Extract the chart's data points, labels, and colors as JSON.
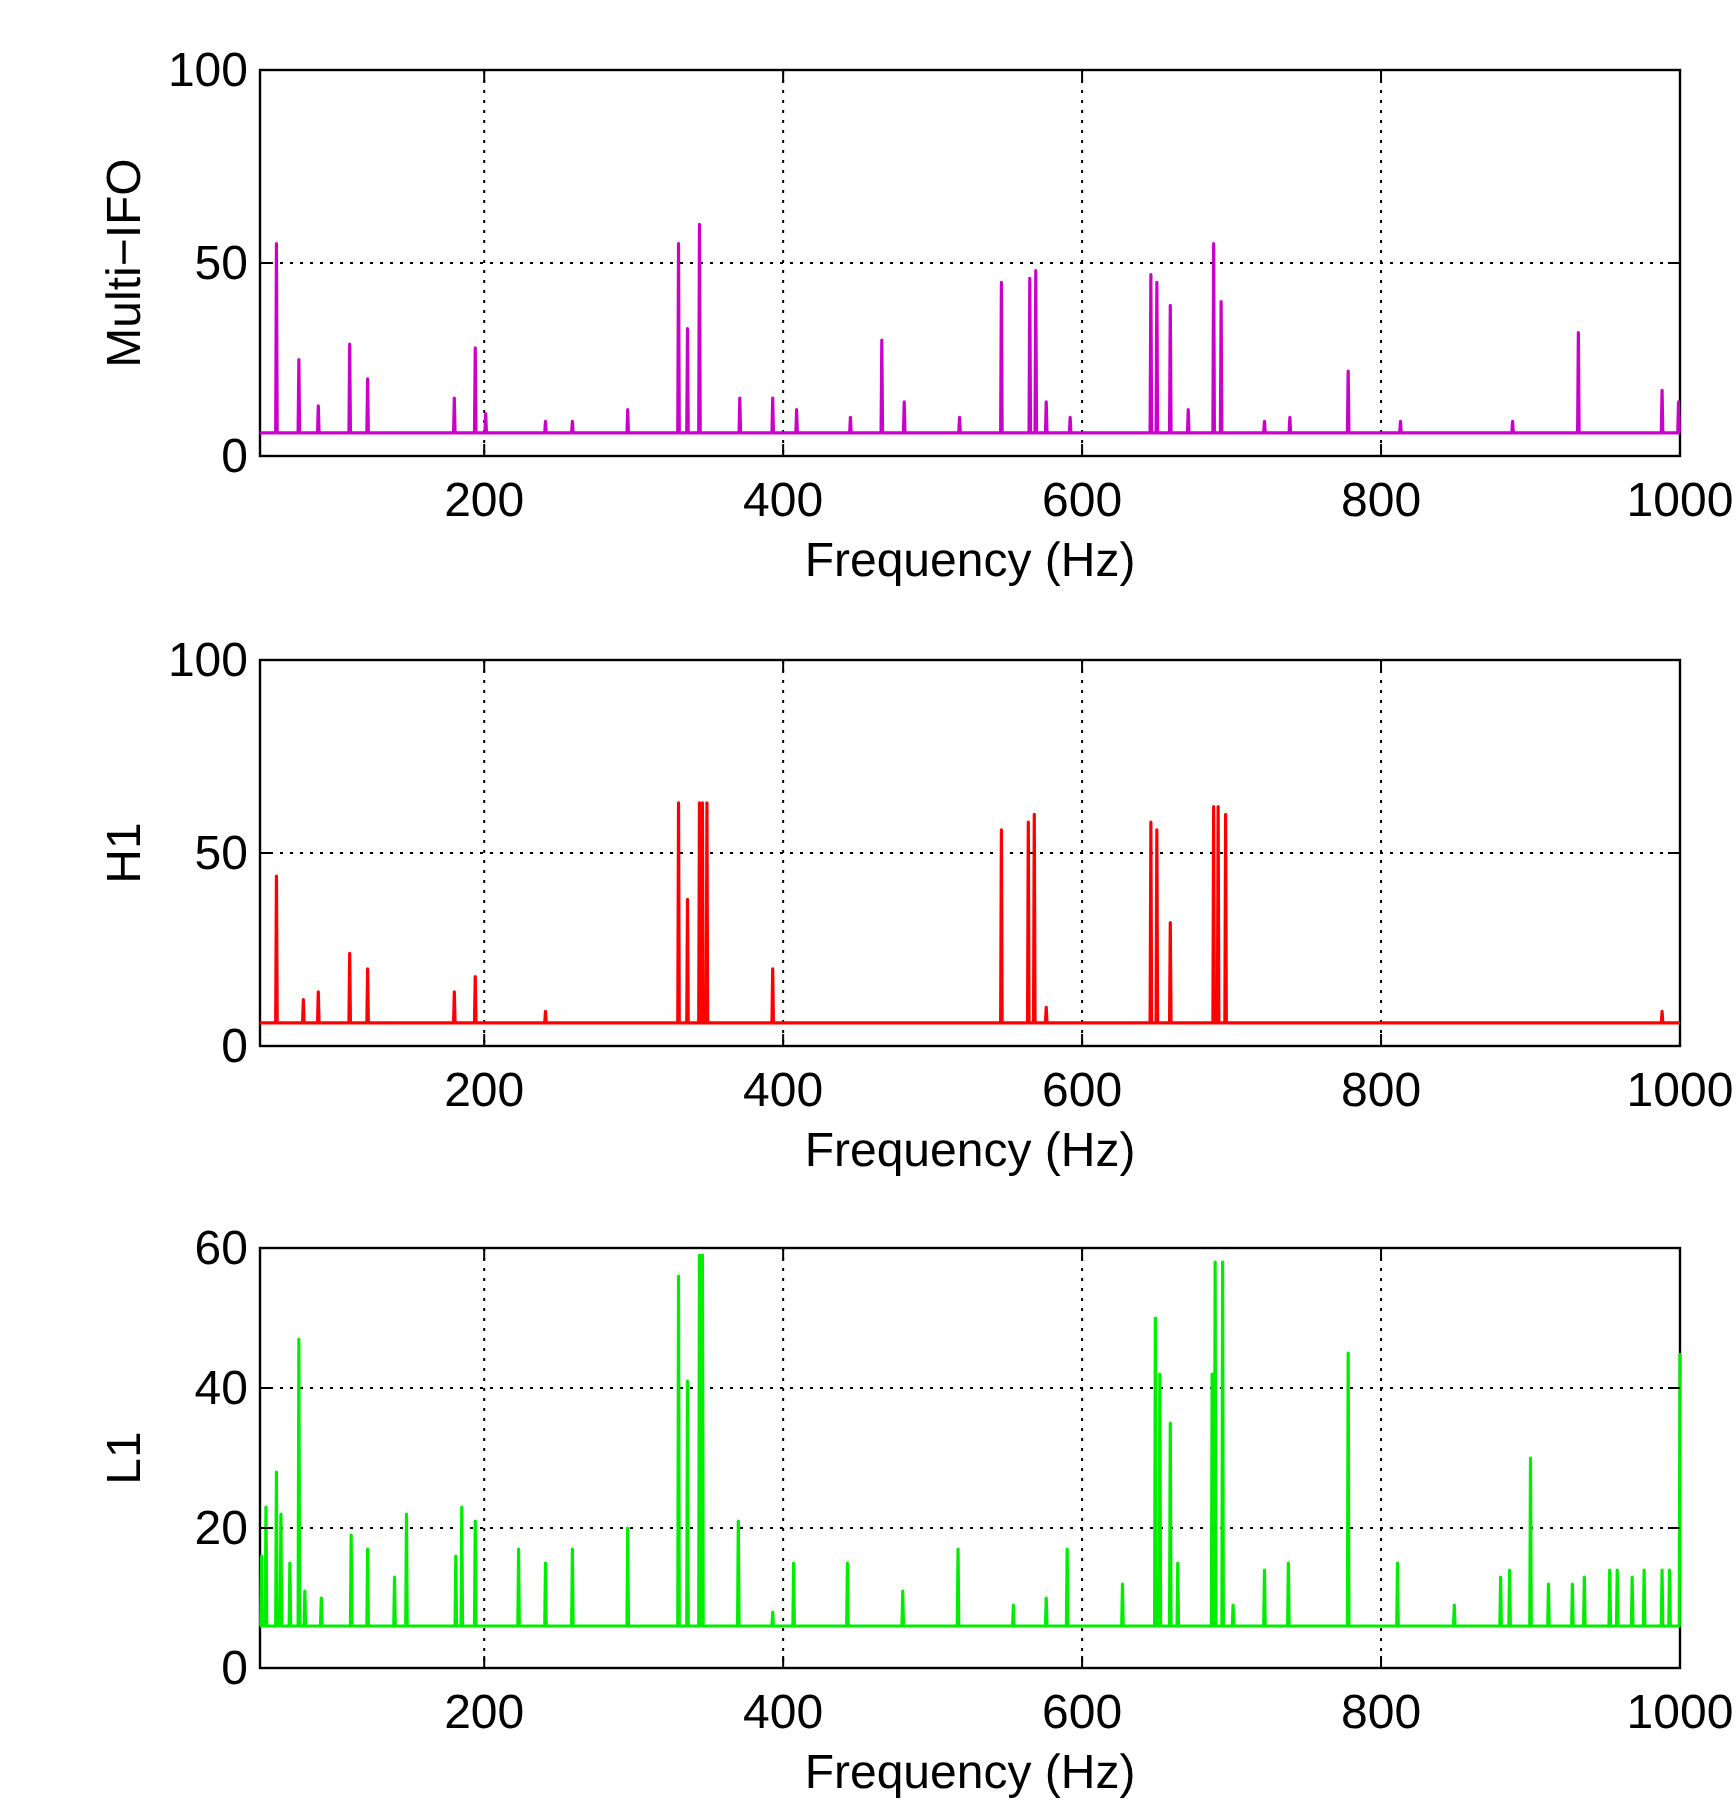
{
  "chart_data": [
    {
      "type": "line",
      "ylabel": "Multi−IFO",
      "xlabel": "Frequency (Hz)",
      "xlim": [
        50,
        1000
      ],
      "xticks": [
        200,
        400,
        600,
        800,
        1000
      ],
      "ylim": [
        0,
        100
      ],
      "yticks": [
        0,
        50,
        100
      ],
      "grid": true,
      "series": [
        {
          "color": "#cc00cc",
          "x": [
            50,
            60.5,
            61,
            61.5,
            75.5,
            76,
            76.5,
            88.5,
            89,
            89.5,
            109.5,
            110,
            110.5,
            121.5,
            122,
            122.5,
            179.5,
            180,
            180.5,
            193.5,
            194,
            194.5,
            200.5,
            201,
            201.5,
            240.5,
            241,
            241.5,
            258.5,
            259,
            259.5,
            295.5,
            296,
            296.5,
            329.5,
            330,
            330.5,
            335.5,
            336,
            336.5,
            343.5,
            344,
            344.5,
            370.5,
            371,
            371.5,
            392.5,
            393,
            393.5,
            408.5,
            409,
            409.5,
            444.5,
            445,
            445.5,
            465.5,
            466,
            466.5,
            480.5,
            481,
            481.5,
            517.5,
            518,
            518.5,
            545.5,
            546,
            546.5,
            564.5,
            565,
            565.5,
            568.5,
            569,
            569.5,
            575.5,
            576,
            576.5,
            591.5,
            592,
            592.5,
            645.5,
            646,
            646.5,
            649.5,
            650,
            650.5,
            658.5,
            659,
            659.5,
            670.5,
            671,
            671.5,
            687.5,
            688,
            688.5,
            692.5,
            693,
            693.5,
            721.5,
            722,
            722.5,
            738.5,
            739,
            739.5,
            777.5,
            778,
            778.5,
            812.5,
            813,
            813.5,
            887.5,
            888,
            888.5,
            931.5,
            932,
            932.5,
            987.5,
            988,
            988.5,
            998.5,
            999,
            999.5,
            1000
          ],
          "values": [
            6,
            6,
            55,
            6,
            6,
            25,
            6,
            6,
            13,
            6,
            6,
            29,
            6,
            6,
            20,
            6,
            6,
            15,
            6,
            6,
            28,
            6,
            6,
            11,
            6,
            6,
            9,
            6,
            6,
            9,
            6,
            6,
            12,
            6,
            6,
            55,
            6,
            6,
            33,
            6,
            6,
            60,
            6,
            6,
            15,
            6,
            6,
            15,
            6,
            6,
            12,
            6,
            6,
            10,
            6,
            6,
            30,
            6,
            6,
            14,
            6,
            6,
            10,
            6,
            6,
            45,
            6,
            6,
            46,
            6,
            6,
            48,
            6,
            6,
            14,
            6,
            6,
            10,
            6,
            6,
            47,
            6,
            6,
            45,
            6,
            6,
            39,
            6,
            6,
            12,
            6,
            6,
            55,
            6,
            6,
            40,
            6,
            6,
            9,
            6,
            6,
            10,
            6,
            6,
            22,
            6,
            6,
            9,
            6,
            6,
            9,
            6,
            6,
            32,
            6,
            6,
            17,
            6,
            6,
            14,
            6,
            6
          ]
        }
      ]
    },
    {
      "type": "line",
      "ylabel": "H1",
      "xlabel": "Frequency (Hz)",
      "xlim": [
        50,
        1000
      ],
      "xticks": [
        200,
        400,
        600,
        800,
        1000
      ],
      "ylim": [
        0,
        100
      ],
      "yticks": [
        0,
        50,
        100
      ],
      "grid": true,
      "series": [
        {
          "color": "#ff0000",
          "x": [
            50,
            60.5,
            61,
            61.5,
            78.5,
            79,
            79.5,
            88.5,
            89,
            89.5,
            109.5,
            110,
            110.5,
            121.5,
            122,
            122.5,
            179.5,
            180,
            180.5,
            193.5,
            194,
            194.5,
            240.5,
            241,
            241.5,
            329.5,
            330,
            330.5,
            335.5,
            336,
            336.5,
            343.5,
            344,
            344.5,
            345.5,
            346,
            346.5,
            348.5,
            349,
            349.5,
            392.5,
            393,
            393.5,
            545.5,
            546,
            546.5,
            563.5,
            564,
            564.5,
            567.5,
            568,
            568.5,
            575.5,
            576,
            576.5,
            645.5,
            646,
            646.5,
            649.5,
            650,
            650.5,
            658.5,
            659,
            659.5,
            687.5,
            688,
            688.5,
            690.5,
            691,
            691.5,
            695.5,
            696,
            696.5,
            987.5,
            988,
            988.5,
            1000
          ],
          "values": [
            6,
            6,
            44,
            6,
            6,
            12,
            6,
            6,
            14,
            6,
            6,
            24,
            6,
            6,
            20,
            6,
            6,
            14,
            6,
            6,
            18,
            6,
            6,
            9,
            6,
            6,
            63,
            6,
            6,
            38,
            6,
            6,
            63,
            6,
            6,
            63,
            6,
            6,
            63,
            6,
            6,
            20,
            6,
            6,
            56,
            6,
            6,
            58,
            6,
            6,
            60,
            6,
            6,
            10,
            6,
            6,
            58,
            6,
            6,
            56,
            6,
            6,
            32,
            6,
            6,
            62,
            6,
            6,
            62,
            6,
            6,
            60,
            6,
            6,
            9,
            6,
            6
          ]
        }
      ]
    },
    {
      "type": "line",
      "ylabel": "L1",
      "xlabel": "Frequency (Hz)",
      "xlim": [
        50,
        1000
      ],
      "xticks": [
        200,
        400,
        600,
        800,
        1000
      ],
      "ylim": [
        0,
        60
      ],
      "yticks": [
        0,
        20,
        40,
        60
      ],
      "grid": true,
      "series": [
        {
          "color": "#00ee00",
          "x": [
            50,
            50.5,
            51,
            51.5,
            53.5,
            54,
            54.5,
            60.5,
            61,
            61.5,
            63.5,
            64,
            64.5,
            69.5,
            70,
            70.5,
            75.5,
            76,
            76.5,
            79.5,
            80,
            80.5,
            90.5,
            91,
            91.5,
            110.5,
            111,
            111.5,
            121.5,
            122,
            122.5,
            139.5,
            140,
            140.5,
            147.5,
            148,
            148.5,
            180.5,
            181,
            181.5,
            184.5,
            185,
            185.5,
            193.5,
            194,
            194.5,
            222.5,
            223,
            223.5,
            240.5,
            241,
            241.5,
            258.5,
            259,
            259.5,
            295.5,
            296,
            296.5,
            329.5,
            330,
            330.5,
            335.5,
            336,
            336.5,
            343.5,
            344,
            344.5,
            345.5,
            346,
            346.5,
            369.5,
            370,
            370.5,
            392.5,
            393,
            393.5,
            406.5,
            407,
            407.5,
            442.5,
            443,
            443.5,
            479.5,
            480,
            480.5,
            516.5,
            517,
            517.5,
            553.5,
            554,
            554.5,
            575.5,
            576,
            576.5,
            589.5,
            590,
            590.5,
            626.5,
            627,
            627.5,
            648.5,
            649,
            649.5,
            651.5,
            652,
            652.5,
            658.5,
            659,
            659.5,
            663.5,
            664,
            664.5,
            686.5,
            687,
            687.5,
            688.5,
            689,
            689.5,
            693.5,
            694,
            694.5,
            700.5,
            701,
            701.5,
            721.5,
            722,
            722.5,
            737.5,
            738,
            738.5,
            777.5,
            778,
            778.5,
            810.5,
            811,
            811.5,
            848.5,
            849,
            849.5,
            879.5,
            880,
            880.5,
            885.5,
            886,
            886.5,
            899.5,
            900,
            900.5,
            911.5,
            912,
            912.5,
            927.5,
            928,
            928.5,
            935.5,
            936,
            936.5,
            952.5,
            953,
            953.5,
            957.5,
            958,
            958.5,
            967.5,
            968,
            968.5,
            975.5,
            976,
            976.5,
            987.5,
            988,
            988.5,
            992.5,
            993,
            993.5,
            999.5,
            1000
          ],
          "values": [
            6,
            6,
            16,
            6,
            6,
            23,
            6,
            6,
            28,
            6,
            6,
            22,
            6,
            6,
            15,
            6,
            6,
            47,
            6,
            6,
            11,
            6,
            6,
            10,
            6,
            6,
            19,
            6,
            6,
            17,
            6,
            6,
            13,
            6,
            6,
            22,
            6,
            6,
            16,
            6,
            6,
            23,
            6,
            6,
            21,
            6,
            6,
            17,
            6,
            6,
            15,
            6,
            6,
            17,
            6,
            6,
            20,
            6,
            6,
            56,
            6,
            6,
            41,
            6,
            6,
            59,
            6,
            6,
            59,
            6,
            6,
            21,
            6,
            6,
            8,
            6,
            6,
            15,
            6,
            6,
            15,
            6,
            6,
            11,
            6,
            6,
            17,
            6,
            6,
            9,
            6,
            6,
            10,
            6,
            6,
            17,
            6,
            6,
            12,
            6,
            6,
            50,
            6,
            6,
            42,
            6,
            6,
            35,
            6,
            6,
            15,
            6,
            6,
            42,
            6,
            6,
            58,
            6,
            6,
            58,
            6,
            6,
            9,
            6,
            6,
            14,
            6,
            6,
            15,
            6,
            6,
            45,
            6,
            6,
            15,
            6,
            6,
            9,
            6,
            6,
            13,
            6,
            6,
            14,
            6,
            6,
            30,
            6,
            6,
            12,
            6,
            6,
            12,
            6,
            6,
            13,
            6,
            6,
            14,
            6,
            6,
            14,
            6,
            6,
            13,
            6,
            6,
            14,
            6,
            6,
            14,
            6,
            6,
            14,
            6,
            6,
            45
          ]
        }
      ]
    }
  ]
}
